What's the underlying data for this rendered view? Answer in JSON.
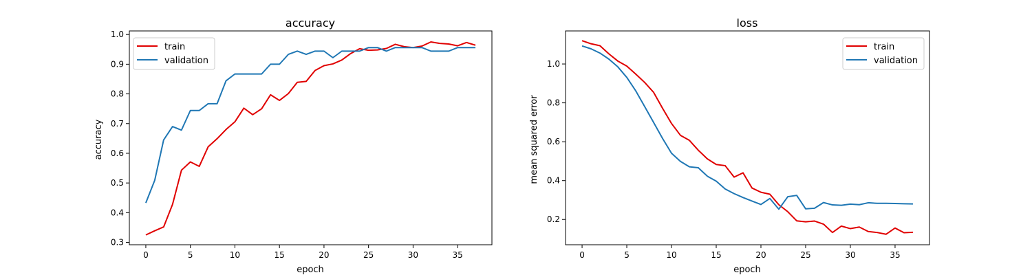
{
  "chart_data": [
    {
      "type": "line",
      "title": "accuracy",
      "xlabel": "epoch",
      "ylabel": "accuracy",
      "xlim": [
        -1.85,
        38.85
      ],
      "ylim": [
        0.292,
        1.012
      ],
      "xticks": [
        0,
        5,
        10,
        15,
        20,
        25,
        30,
        35
      ],
      "yticks": [
        0.3,
        0.4,
        0.5,
        0.6,
        0.7,
        0.8,
        0.9,
        1.0
      ],
      "ytick_labels": [
        "0.3",
        "0.4",
        "0.5",
        "0.6",
        "0.7",
        "0.8",
        "0.9",
        "1.0"
      ],
      "legend_position": "top-left",
      "grid": false,
      "x": [
        0,
        1,
        2,
        3,
        4,
        5,
        6,
        7,
        8,
        9,
        10,
        11,
        12,
        13,
        14,
        15,
        16,
        17,
        18,
        19,
        20,
        21,
        22,
        23,
        24,
        25,
        26,
        27,
        28,
        29,
        30,
        31,
        32,
        33,
        34,
        35,
        36,
        37
      ],
      "series": [
        {
          "name": "train",
          "color": "#e00000",
          "values": [
            0.325,
            0.339,
            0.352,
            0.428,
            0.543,
            0.571,
            0.556,
            0.622,
            0.649,
            0.68,
            0.706,
            0.752,
            0.73,
            0.75,
            0.797,
            0.778,
            0.801,
            0.839,
            0.842,
            0.879,
            0.895,
            0.901,
            0.914,
            0.936,
            0.952,
            0.947,
            0.948,
            0.953,
            0.967,
            0.959,
            0.956,
            0.961,
            0.975,
            0.97,
            0.968,
            0.962,
            0.973,
            0.964
          ]
        },
        {
          "name": "validation",
          "color": "#1f77b4",
          "values": [
            0.433,
            0.509,
            0.645,
            0.69,
            0.678,
            0.744,
            0.744,
            0.767,
            0.767,
            0.844,
            0.867,
            0.867,
            0.867,
            0.867,
            0.9,
            0.9,
            0.933,
            0.944,
            0.933,
            0.944,
            0.944,
            0.922,
            0.944,
            0.944,
            0.944,
            0.956,
            0.956,
            0.944,
            0.956,
            0.956,
            0.956,
            0.956,
            0.944,
            0.944,
            0.944,
            0.956,
            0.956,
            0.956
          ]
        }
      ]
    },
    {
      "type": "line",
      "title": "loss",
      "xlabel": "epoch",
      "ylabel": "mean squared error",
      "xlim": [
        -1.85,
        38.85
      ],
      "ylim": [
        0.07,
        1.17
      ],
      "xticks": [
        0,
        5,
        10,
        15,
        20,
        25,
        30,
        35
      ],
      "yticks": [
        0.2,
        0.4,
        0.6,
        0.8,
        1.0
      ],
      "ytick_labels": [
        "0.2",
        "0.4",
        "0.6",
        "0.8",
        "1.0"
      ],
      "legend_position": "top-right",
      "grid": false,
      "x": [
        0,
        1,
        2,
        3,
        4,
        5,
        6,
        7,
        8,
        9,
        10,
        11,
        12,
        13,
        14,
        15,
        16,
        17,
        18,
        19,
        20,
        21,
        22,
        23,
        24,
        25,
        26,
        27,
        28,
        29,
        30,
        31,
        32,
        33,
        34,
        35,
        36,
        37
      ],
      "series": [
        {
          "name": "train",
          "color": "#e00000",
          "values": [
            1.12,
            1.104,
            1.094,
            1.052,
            1.015,
            0.989,
            0.948,
            0.905,
            0.854,
            0.772,
            0.694,
            0.633,
            0.607,
            0.556,
            0.512,
            0.483,
            0.477,
            0.418,
            0.44,
            0.362,
            0.34,
            0.33,
            0.276,
            0.24,
            0.193,
            0.188,
            0.192,
            0.176,
            0.133,
            0.166,
            0.153,
            0.161,
            0.138,
            0.133,
            0.124,
            0.156,
            0.132,
            0.134
          ]
        },
        {
          "name": "validation",
          "color": "#1f77b4",
          "values": [
            1.093,
            1.078,
            1.056,
            1.025,
            0.985,
            0.931,
            0.862,
            0.781,
            0.699,
            0.617,
            0.541,
            0.499,
            0.471,
            0.466,
            0.423,
            0.397,
            0.357,
            0.333,
            0.313,
            0.295,
            0.277,
            0.308,
            0.253,
            0.317,
            0.324,
            0.255,
            0.258,
            0.287,
            0.275,
            0.273,
            0.279,
            0.276,
            0.286,
            0.283,
            0.283,
            0.282,
            0.281,
            0.28
          ]
        }
      ]
    }
  ]
}
